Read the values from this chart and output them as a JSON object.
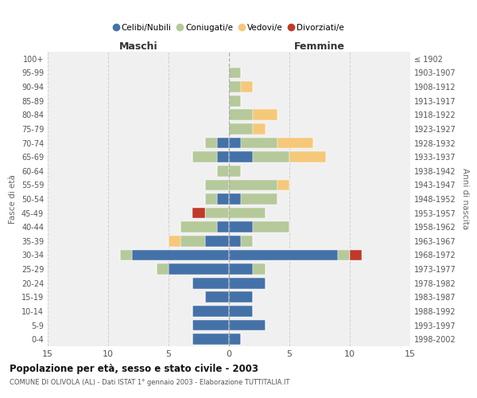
{
  "age_groups": [
    "100+",
    "95-99",
    "90-94",
    "85-89",
    "80-84",
    "75-79",
    "70-74",
    "65-69",
    "60-64",
    "55-59",
    "50-54",
    "45-49",
    "40-44",
    "35-39",
    "30-34",
    "25-29",
    "20-24",
    "15-19",
    "10-14",
    "5-9",
    "0-4"
  ],
  "birth_years": [
    "≤ 1902",
    "1903-1907",
    "1908-1912",
    "1913-1917",
    "1918-1922",
    "1923-1927",
    "1928-1932",
    "1933-1937",
    "1938-1942",
    "1943-1947",
    "1948-1952",
    "1953-1957",
    "1958-1962",
    "1963-1967",
    "1968-1972",
    "1973-1977",
    "1978-1982",
    "1983-1987",
    "1988-1992",
    "1993-1997",
    "1998-2002"
  ],
  "maschi": {
    "celibi": [
      0,
      0,
      0,
      0,
      0,
      0,
      1,
      1,
      0,
      0,
      1,
      0,
      1,
      2,
      8,
      5,
      3,
      2,
      3,
      3,
      3
    ],
    "coniugati": [
      0,
      0,
      0,
      0,
      0,
      0,
      1,
      2,
      1,
      2,
      1,
      2,
      3,
      2,
      1,
      1,
      0,
      0,
      0,
      0,
      0
    ],
    "vedovi": [
      0,
      0,
      0,
      0,
      0,
      0,
      0,
      0,
      0,
      0,
      0,
      0,
      0,
      1,
      0,
      0,
      0,
      0,
      0,
      0,
      0
    ],
    "divorziati": [
      0,
      0,
      0,
      0,
      0,
      0,
      0,
      0,
      0,
      0,
      0,
      1,
      0,
      0,
      0,
      0,
      0,
      0,
      0,
      0,
      0
    ]
  },
  "femmine": {
    "nubili": [
      0,
      0,
      0,
      0,
      0,
      0,
      1,
      2,
      0,
      0,
      1,
      0,
      2,
      1,
      9,
      2,
      3,
      2,
      2,
      3,
      1
    ],
    "coniugate": [
      0,
      1,
      1,
      1,
      2,
      2,
      3,
      3,
      1,
      4,
      3,
      3,
      3,
      1,
      1,
      1,
      0,
      0,
      0,
      0,
      0
    ],
    "vedove": [
      0,
      0,
      1,
      0,
      2,
      1,
      3,
      3,
      0,
      1,
      0,
      0,
      0,
      0,
      0,
      0,
      0,
      0,
      0,
      0,
      0
    ],
    "divorziate": [
      0,
      0,
      0,
      0,
      0,
      0,
      0,
      0,
      0,
      0,
      0,
      0,
      0,
      0,
      1,
      0,
      0,
      0,
      0,
      0,
      0
    ]
  },
  "colors": {
    "celibi_nubili": "#4472a8",
    "coniugati": "#b5c99a",
    "vedovi": "#f5c87a",
    "divorziati": "#c0392b"
  },
  "title": "Popolazione per età, sesso e stato civile - 2003",
  "subtitle": "COMUNE DI OLIVOLA (AL) - Dati ISTAT 1° gennaio 2003 - Elaborazione TUTTITALIA.IT",
  "xlabel_left": "Maschi",
  "xlabel_right": "Femmine",
  "ylabel_left": "Fasce di età",
  "ylabel_right": "Anni di nascita",
  "xlim": 15,
  "background_color": "#ffffff",
  "plot_bg": "#f0f0f0",
  "grid_color": "#cccccc"
}
